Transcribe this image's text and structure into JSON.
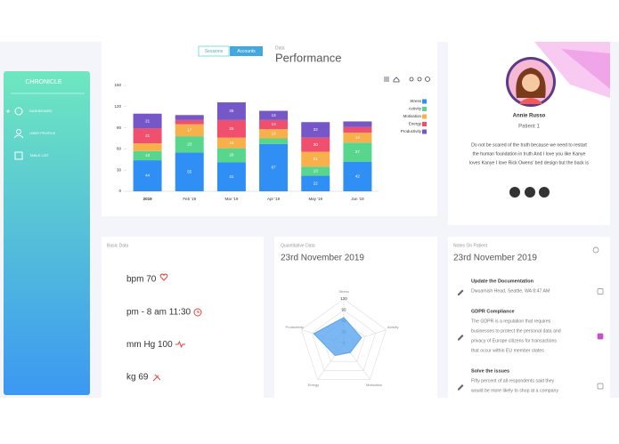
{
  "sidebar": {
    "brand": "CHRONICLE",
    "menu": [
      "DASHBOARD",
      "USER PROFILE",
      "TABLE LIST"
    ]
  },
  "performance": {
    "tabs": [
      "Sessions",
      "Accounts"
    ],
    "subtitle": "Data",
    "title": "Performance",
    "chart_data": {
      "type": "bar",
      "stacked": true,
      "categories": [
        "2019",
        "Feb '19",
        "Mar '19",
        "Apr '19",
        "May '19",
        "Jun '19"
      ],
      "series": [
        {
          "name": "Stress",
          "color": "#2f8ff5",
          "values": [
            44,
            55,
            41,
            67,
            22,
            42
          ]
        },
        {
          "name": "Activity",
          "color": "#58d68d",
          "values": [
            13,
            23,
            20,
            8,
            13,
            27
          ]
        },
        {
          "name": "Motivation",
          "color": "#f8b04a",
          "values": [
            11,
            17,
            15,
            13,
            21,
            14
          ]
        },
        {
          "name": "Energy",
          "color": "#f0506e",
          "values": [
            21,
            6,
            25,
            13,
            20,
            8
          ]
        },
        {
          "name": "Productivity",
          "color": "#7557c8",
          "values": [
            21,
            7,
            25,
            13,
            22,
            8
          ]
        }
      ],
      "ylim": [
        0,
        150
      ],
      "yticks": [
        0,
        30,
        60,
        90,
        120,
        150
      ],
      "legend": "right"
    }
  },
  "patient": {
    "name": "Annie Russo",
    "role": "Patient 1",
    "bio": [
      "Do not be scared of the truth because we need to restart",
      "the human foundation in truth And I love you like Kanye",
      "loves Kanye I love Rick Owens' bed design but the back is"
    ]
  },
  "basic": {
    "title": "Basic Data",
    "items": [
      "bpm 70",
      "pm - 8 am 11:30",
      "mm Hg 100",
      "kg 69"
    ]
  },
  "quantitative": {
    "title": "Quantitative Data",
    "date": "23rd November 2019",
    "chart_data": {
      "type": "radar",
      "axes": [
        "Stress",
        "Activity",
        "Motivation",
        "Energy",
        "Productivity"
      ],
      "values": [
        70,
        50,
        30,
        40,
        85
      ],
      "color": "#5aa5f0",
      "ylim": [
        0,
        120
      ],
      "yticks": [
        0,
        30,
        60,
        90,
        120
      ]
    }
  },
  "notes": {
    "title": "Notes On Patient",
    "date": "23rd November 2019",
    "items": [
      {
        "title": "Update the Documentation",
        "lines": [
          "Dwuamish Head, Seattle, WA 8:47 AM"
        ],
        "checked": false
      },
      {
        "title": "GDPR Compliance",
        "lines": [
          "The GDPR is a regulation that requires",
          "businesses to protect the personal data and",
          "privacy of Europe citizens for transactions",
          "that occur within EU member states"
        ],
        "checked": true
      },
      {
        "title": "Solve the issues",
        "lines": [
          "Fifty percent of all respondents said they",
          "would be more likely to shop at a company"
        ],
        "checked": false
      }
    ]
  }
}
